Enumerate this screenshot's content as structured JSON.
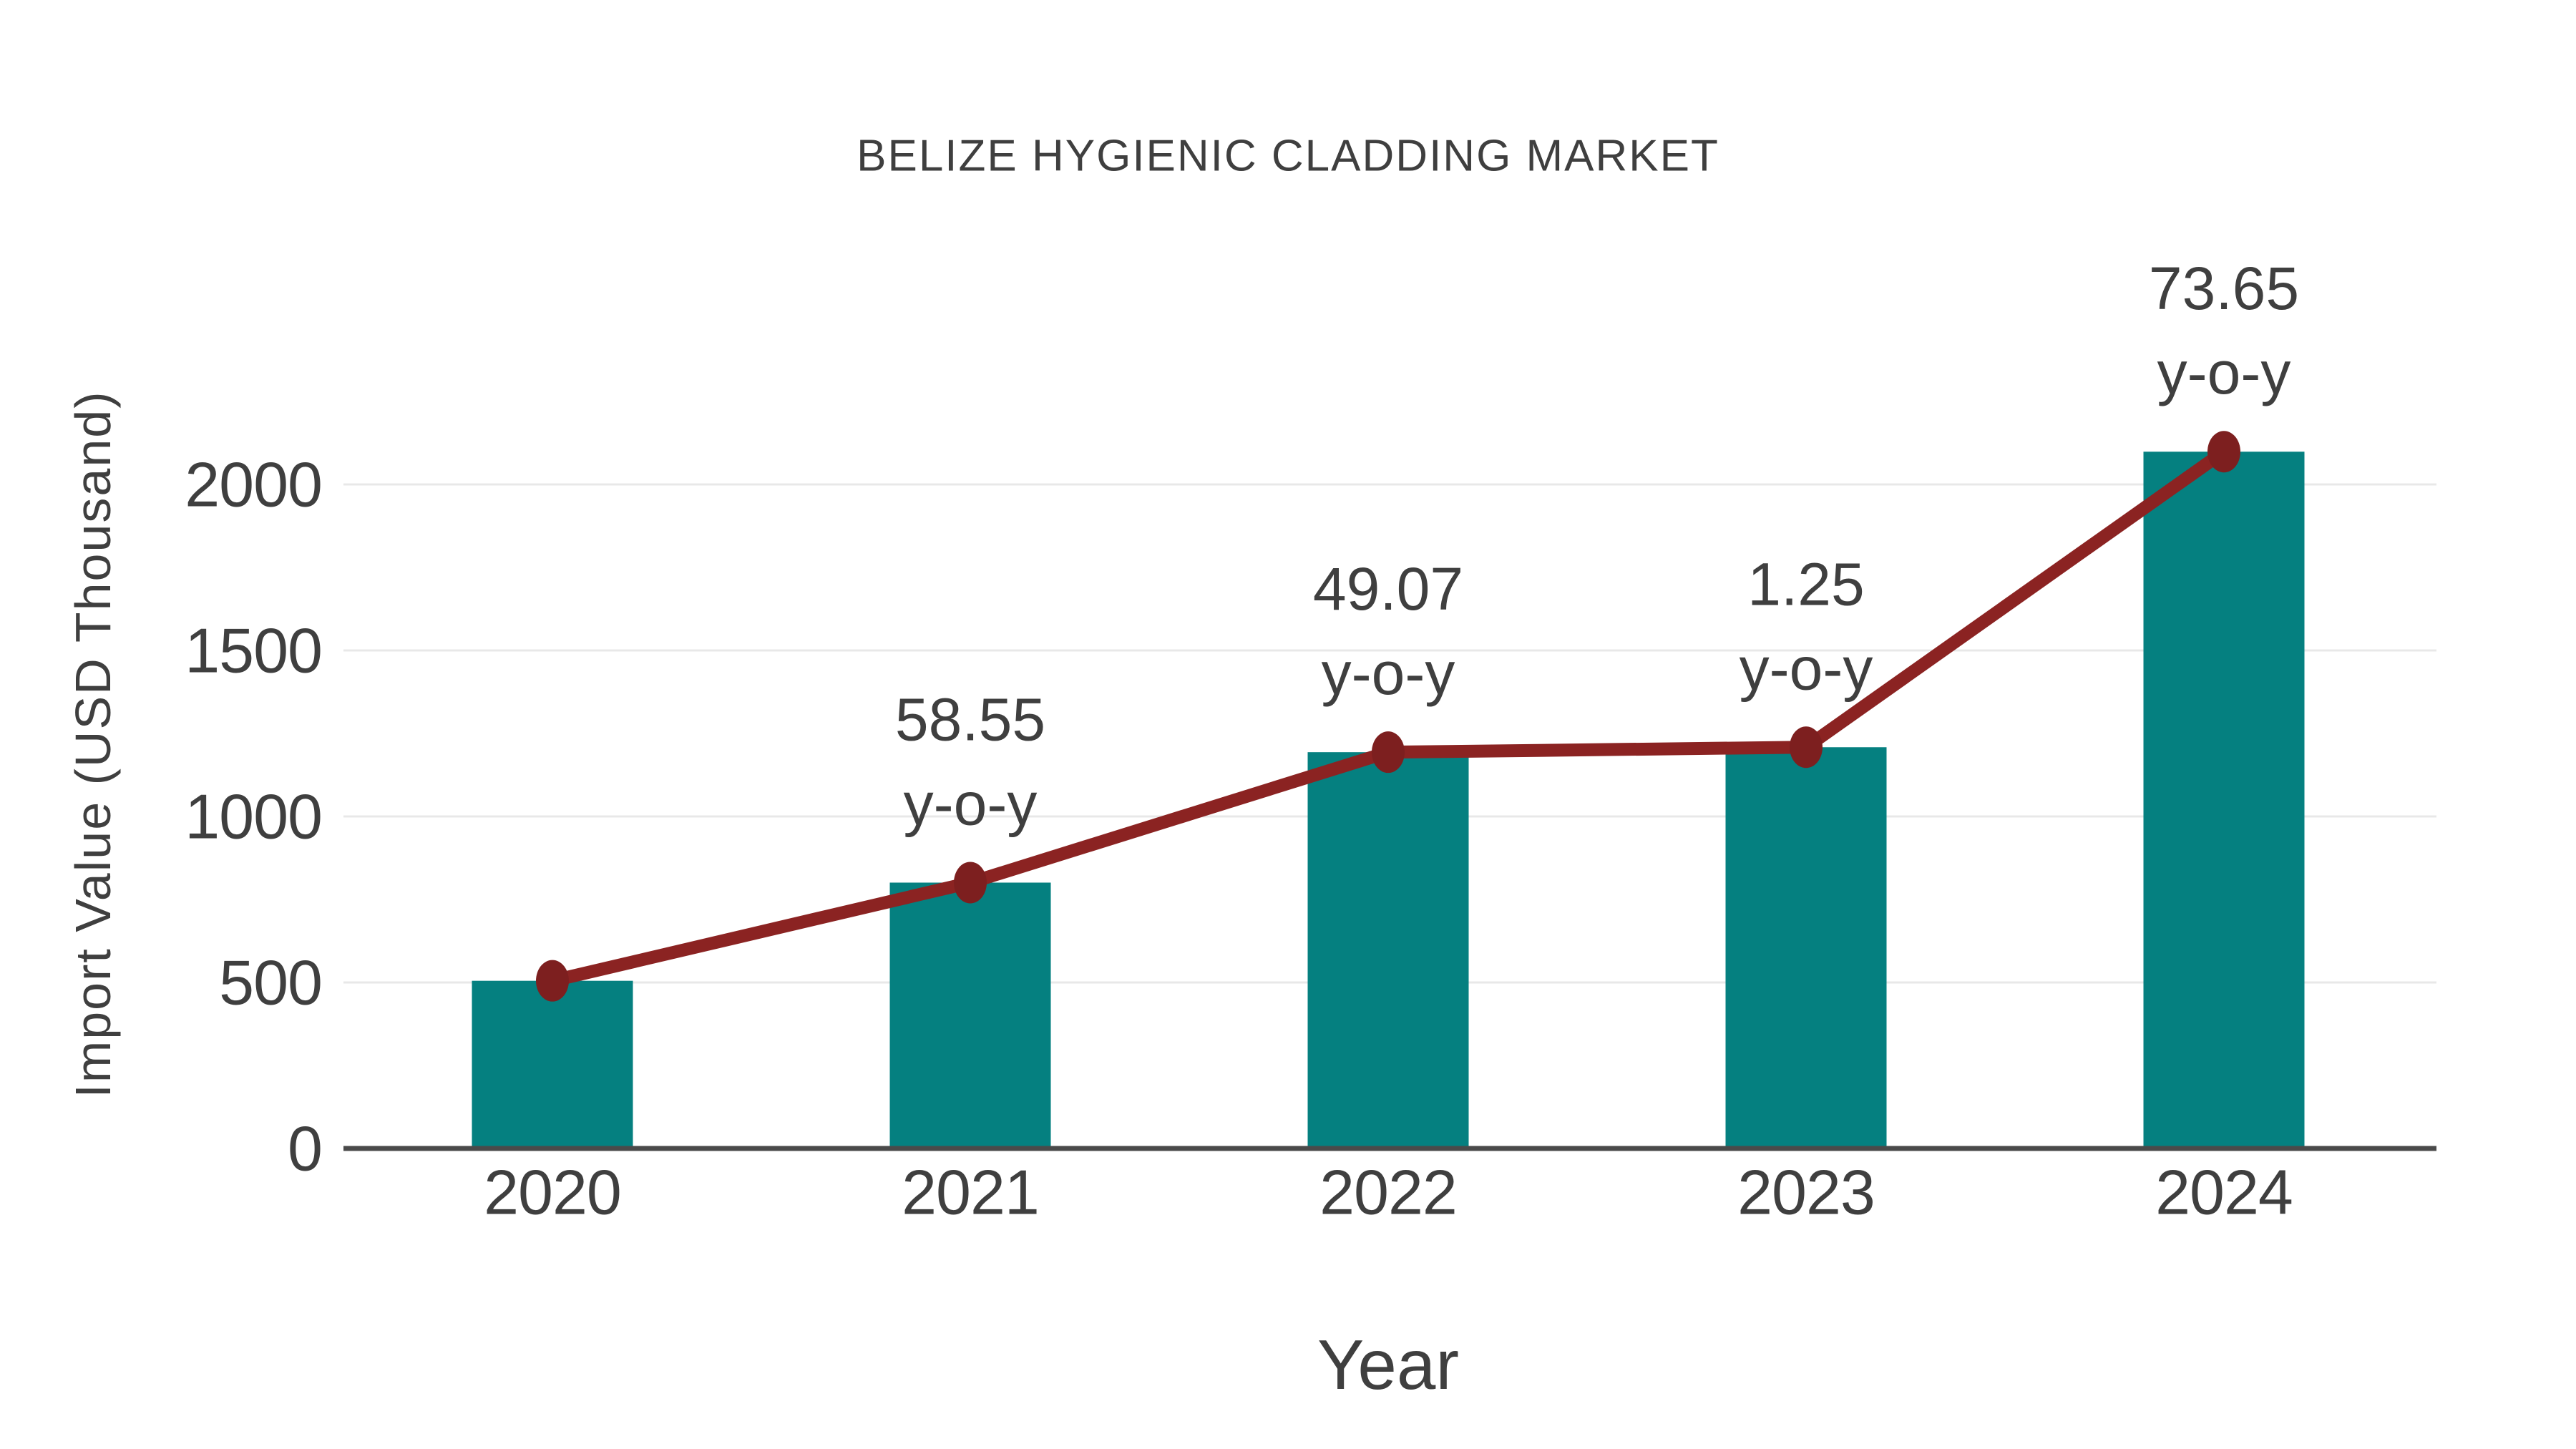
{
  "chart_data": {
    "type": "bar+line",
    "title": "BELIZE HYGIENIC CLADDING MARKET",
    "xlabel": "Year",
    "ylabel": "Import Value (USD Thousand)",
    "categories": [
      "2020",
      "2021",
      "2022",
      "2023",
      "2024"
    ],
    "series": [
      {
        "type": "bar",
        "values": [
          505,
          800.7,
          1193.6,
          1208.5,
          2098.6
        ]
      },
      {
        "type": "line",
        "values": [
          505,
          800.7,
          1193.6,
          1208.5,
          2098.6
        ],
        "point_labels": [
          "",
          "58.55",
          "49.07",
          "1.25",
          "73.65"
        ],
        "point_label_suffix": "y-o-y"
      }
    ],
    "yoy_growth_percent": [
      null,
      58.55,
      49.07,
      1.25,
      73.65
    ],
    "yticks": [
      0,
      500,
      1000,
      1500,
      2000
    ],
    "ylim": [
      0,
      2150
    ],
    "grid": "horizontal",
    "legend": "none",
    "colors": {
      "bar": "#058080",
      "line": "#8B2322",
      "marker": "#7D1F1F",
      "axis": "#4A4A4A",
      "gridline": "#E8E8E8",
      "text": "#3F3F3F"
    }
  }
}
